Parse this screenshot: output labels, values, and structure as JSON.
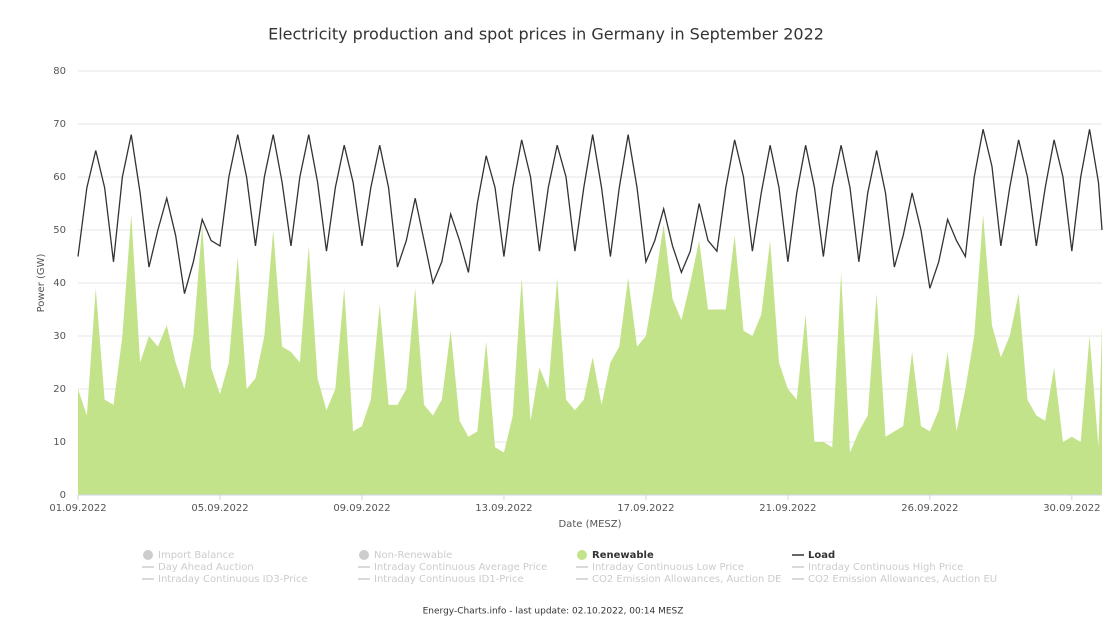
{
  "chart_data": {
    "type": "line-area",
    "title": "Electricity production and spot prices in Germany in September 2022",
    "y_label": "Power (GW)",
    "x_label": "Date (MESZ)",
    "credit": "Energy-Charts.info - last update: 02.10.2022, 00:14 MESZ",
    "xlim": [
      0,
      28.85
    ],
    "ylim": [
      0,
      80
    ],
    "yticks": [
      0,
      10,
      20,
      30,
      40,
      50,
      60,
      70,
      80
    ],
    "xticks": [
      {
        "value": 0,
        "label": "01.09.2022"
      },
      {
        "value": 4,
        "label": "05.09.2022"
      },
      {
        "value": 8,
        "label": "09.09.2022"
      },
      {
        "value": 12,
        "label": "13.09.2022"
      },
      {
        "value": 16,
        "label": "17.09.2022"
      },
      {
        "value": 20,
        "label": "21.09.2022"
      },
      {
        "value": 24,
        "label": "26.09.2022"
      },
      {
        "value": 28,
        "label": "30.09.2022"
      }
    ],
    "grid": true,
    "x": [
      0,
      0.25,
      0.5,
      0.75,
      1,
      1.25,
      1.5,
      1.75,
      2,
      2.25,
      2.5,
      2.75,
      3,
      3.25,
      3.5,
      3.75,
      4,
      4.25,
      4.5,
      4.75,
      5,
      5.25,
      5.5,
      5.75,
      6,
      6.25,
      6.5,
      6.75,
      7,
      7.25,
      7.5,
      7.75,
      8,
      8.25,
      8.5,
      8.75,
      9,
      9.25,
      9.5,
      9.75,
      10,
      10.25,
      10.5,
      10.75,
      11,
      11.25,
      11.5,
      11.75,
      12,
      12.25,
      12.5,
      12.75,
      13,
      13.25,
      13.5,
      13.75,
      14,
      14.25,
      14.5,
      14.75,
      15,
      15.25,
      15.5,
      15.75,
      16,
      16.25,
      16.5,
      16.75,
      17,
      17.25,
      17.5,
      17.75,
      18,
      18.25,
      18.5,
      18.75,
      19,
      19.25,
      19.5,
      19.75,
      20,
      20.25,
      20.5,
      20.75,
      21,
      21.25,
      21.5,
      21.75,
      22,
      22.25,
      22.5,
      22.75,
      23,
      23.25,
      23.5,
      23.75,
      24,
      24.25,
      24.5,
      24.75,
      25,
      25.25,
      25.5,
      25.75,
      26,
      26.25,
      26.5,
      26.75,
      27,
      27.25,
      27.5,
      27.75,
      28,
      28.25,
      28.5,
      28.75,
      28.85
    ],
    "series": [
      {
        "name": "Renewable",
        "kind": "area",
        "color": "#c3e38a",
        "values": [
          20,
          15,
          39,
          18,
          17,
          30,
          53,
          25,
          30,
          28,
          32,
          25,
          20,
          30,
          51,
          24,
          19,
          25,
          45,
          20,
          22,
          30,
          50,
          28,
          27,
          25,
          47,
          22,
          16,
          20,
          39,
          12,
          13,
          18,
          36,
          17,
          17,
          20,
          39,
          17,
          15,
          18,
          31,
          14,
          11,
          12,
          29,
          9,
          8,
          15,
          41,
          14,
          24,
          20,
          41,
          18,
          16,
          18,
          26,
          17,
          25,
          28,
          41,
          28,
          30,
          40,
          51,
          37,
          33,
          40,
          48,
          35,
          35,
          35,
          49,
          31,
          30,
          34,
          48,
          25,
          20,
          18,
          34,
          10,
          10,
          9,
          42,
          8,
          12,
          15,
          38,
          11,
          12,
          13,
          27,
          13,
          12,
          16,
          27,
          12,
          20,
          30,
          53,
          32,
          26,
          30,
          38,
          18,
          15,
          14,
          24,
          10,
          11,
          10,
          30,
          9,
          32
        ]
      },
      {
        "name": "Load",
        "kind": "line",
        "color": "#333333",
        "values": [
          45,
          58,
          65,
          58,
          44,
          60,
          68,
          57,
          43,
          50,
          56,
          49,
          38,
          44,
          52,
          48,
          47,
          60,
          68,
          60,
          47,
          60,
          68,
          59,
          47,
          60,
          68,
          59,
          46,
          58,
          66,
          59,
          47,
          58,
          66,
          58,
          43,
          48,
          56,
          48,
          40,
          44,
          53,
          48,
          42,
          55,
          64,
          58,
          45,
          58,
          67,
          60,
          46,
          58,
          66,
          60,
          46,
          58,
          68,
          58,
          45,
          58,
          68,
          58,
          44,
          48,
          54,
          47,
          42,
          46,
          55,
          48,
          46,
          58,
          67,
          60,
          46,
          57,
          66,
          58,
          44,
          57,
          66,
          58,
          45,
          58,
          66,
          58,
          44,
          57,
          65,
          57,
          43,
          49,
          57,
          50,
          39,
          44,
          52,
          48,
          45,
          60,
          69,
          62,
          47,
          58,
          67,
          60,
          47,
          58,
          67,
          60,
          46,
          60,
          69,
          59,
          50
        ]
      }
    ],
    "hidden_series": [
      {
        "name": "Import Balance",
        "marker": "dot"
      },
      {
        "name": "Non-Renewable",
        "marker": "dot"
      },
      {
        "name": "Day Ahead Auction",
        "marker": "line"
      },
      {
        "name": "Intraday Continuous Average Price",
        "marker": "line"
      },
      {
        "name": "Intraday Continuous Low Price",
        "marker": "line"
      },
      {
        "name": "Intraday Continuous High Price",
        "marker": "line"
      },
      {
        "name": "Intraday Continuous ID3-Price",
        "marker": "line"
      },
      {
        "name": "Intraday Continuous ID1-Price",
        "marker": "line"
      },
      {
        "name": "CO2 Emission Allowances, Auction DE",
        "marker": "line"
      },
      {
        "name": "CO2 Emission Allowances, Auction EU",
        "marker": "line"
      }
    ]
  }
}
